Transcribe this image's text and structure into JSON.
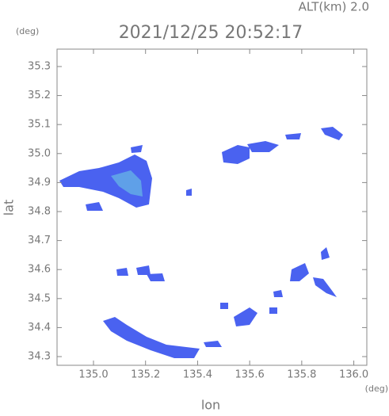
{
  "altitude_label": "ALT(km) 2.0",
  "chart_data": {
    "type": "map",
    "title": "2021/12/25 20:52:17",
    "y_unit": "(deg)",
    "x_unit": "(deg)",
    "ylabel": "lat",
    "xlabel": "lon",
    "xlim": [
      134.86,
      136.05
    ],
    "ylim": [
      34.27,
      35.36
    ],
    "xticks": [
      {
        "value": 135.0,
        "label": "135.0"
      },
      135.2,
      135.4,
      135.6,
      135.8,
      {
        "value": 136.0,
        "label": "136.0"
      }
    ],
    "yticks": [
      {
        "value": 34.3,
        "label": "34.3"
      },
      34.4,
      34.5,
      34.6,
      34.7,
      34.8,
      34.9,
      {
        "value": 35.0,
        "label": "35.0"
      },
      35.1,
      35.2,
      35.3
    ]
  }
}
